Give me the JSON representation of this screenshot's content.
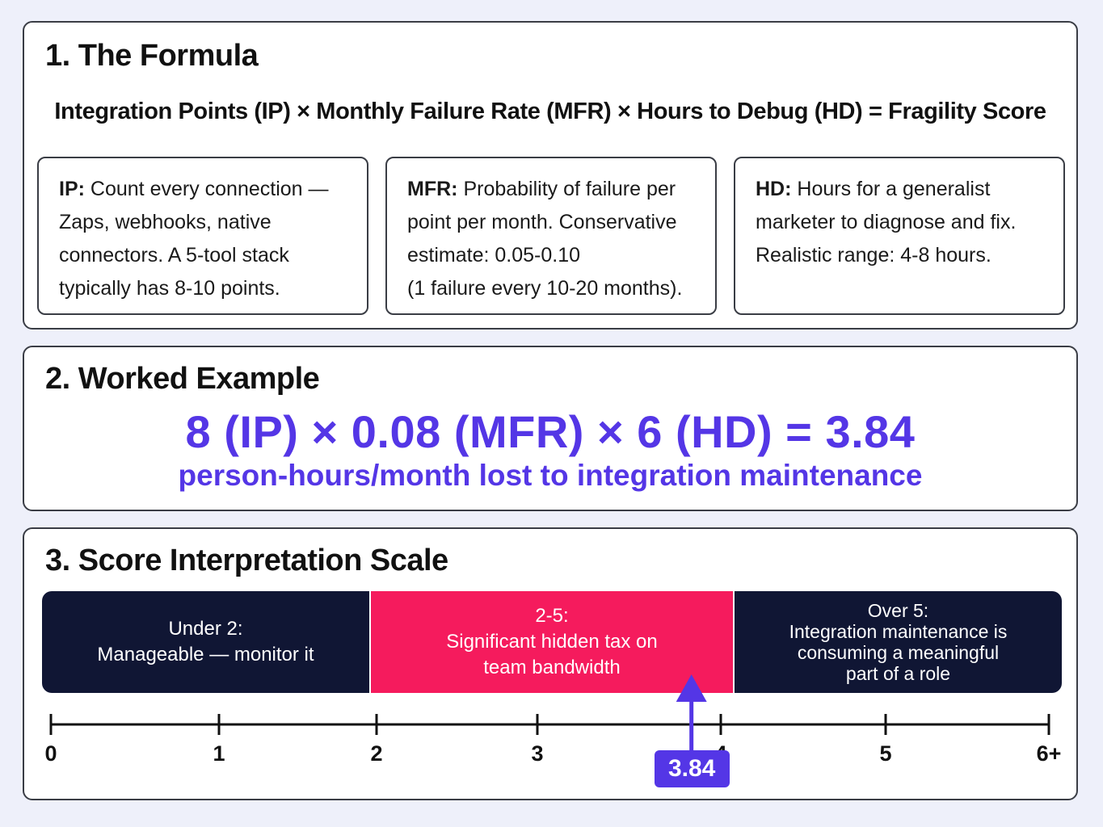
{
  "colors": {
    "accent": "#5436e6",
    "band_low": "#101634",
    "band_mid": "#f51b5d",
    "band_high": "#101634"
  },
  "section1": {
    "title": "1. The Formula",
    "formula": "Integration Points (IP) × Monthly Failure Rate (MFR) × Hours to Debug (HD) = Fragility Score",
    "definitions": [
      {
        "term": "IP:",
        "lines": [
          "Count every connection —",
          "Zaps, webhooks, native",
          "connectors. A 5-tool stack",
          "typically has 8-10 points."
        ]
      },
      {
        "term": "MFR:",
        "lines": [
          "Probability of failure per",
          "point per month. Conservative",
          "estimate: 0.05-0.10",
          "(1 failure every 10-20 months)."
        ]
      },
      {
        "term": "HD:",
        "lines": [
          "Hours for a generalist",
          "marketer to diagnose and fix.",
          "Realistic range: 4-8 hours."
        ]
      }
    ]
  },
  "section2": {
    "title": "2. Worked Example",
    "equation": "8 (IP) × 0.08 (MFR) × 6 (HD) = 3.84",
    "unit_line": "person-hours/month lost to integration maintenance"
  },
  "section3": {
    "title": "3. Score Interpretation Scale",
    "bands": [
      {
        "range": "Under 2:",
        "lines": [
          "Manageable — monitor it"
        ]
      },
      {
        "range": "2-5:",
        "lines": [
          "Significant hidden tax on",
          "team bandwidth"
        ]
      },
      {
        "range": "Over 5:",
        "lines": [
          "Integration maintenance is",
          "consuming a meaningful",
          "part of a role"
        ]
      }
    ],
    "axis": {
      "ticks": [
        "0",
        "1",
        "2",
        "3",
        "4",
        "5",
        "6+"
      ],
      "marker_value": 3.84,
      "marker_label": "3.84"
    }
  }
}
